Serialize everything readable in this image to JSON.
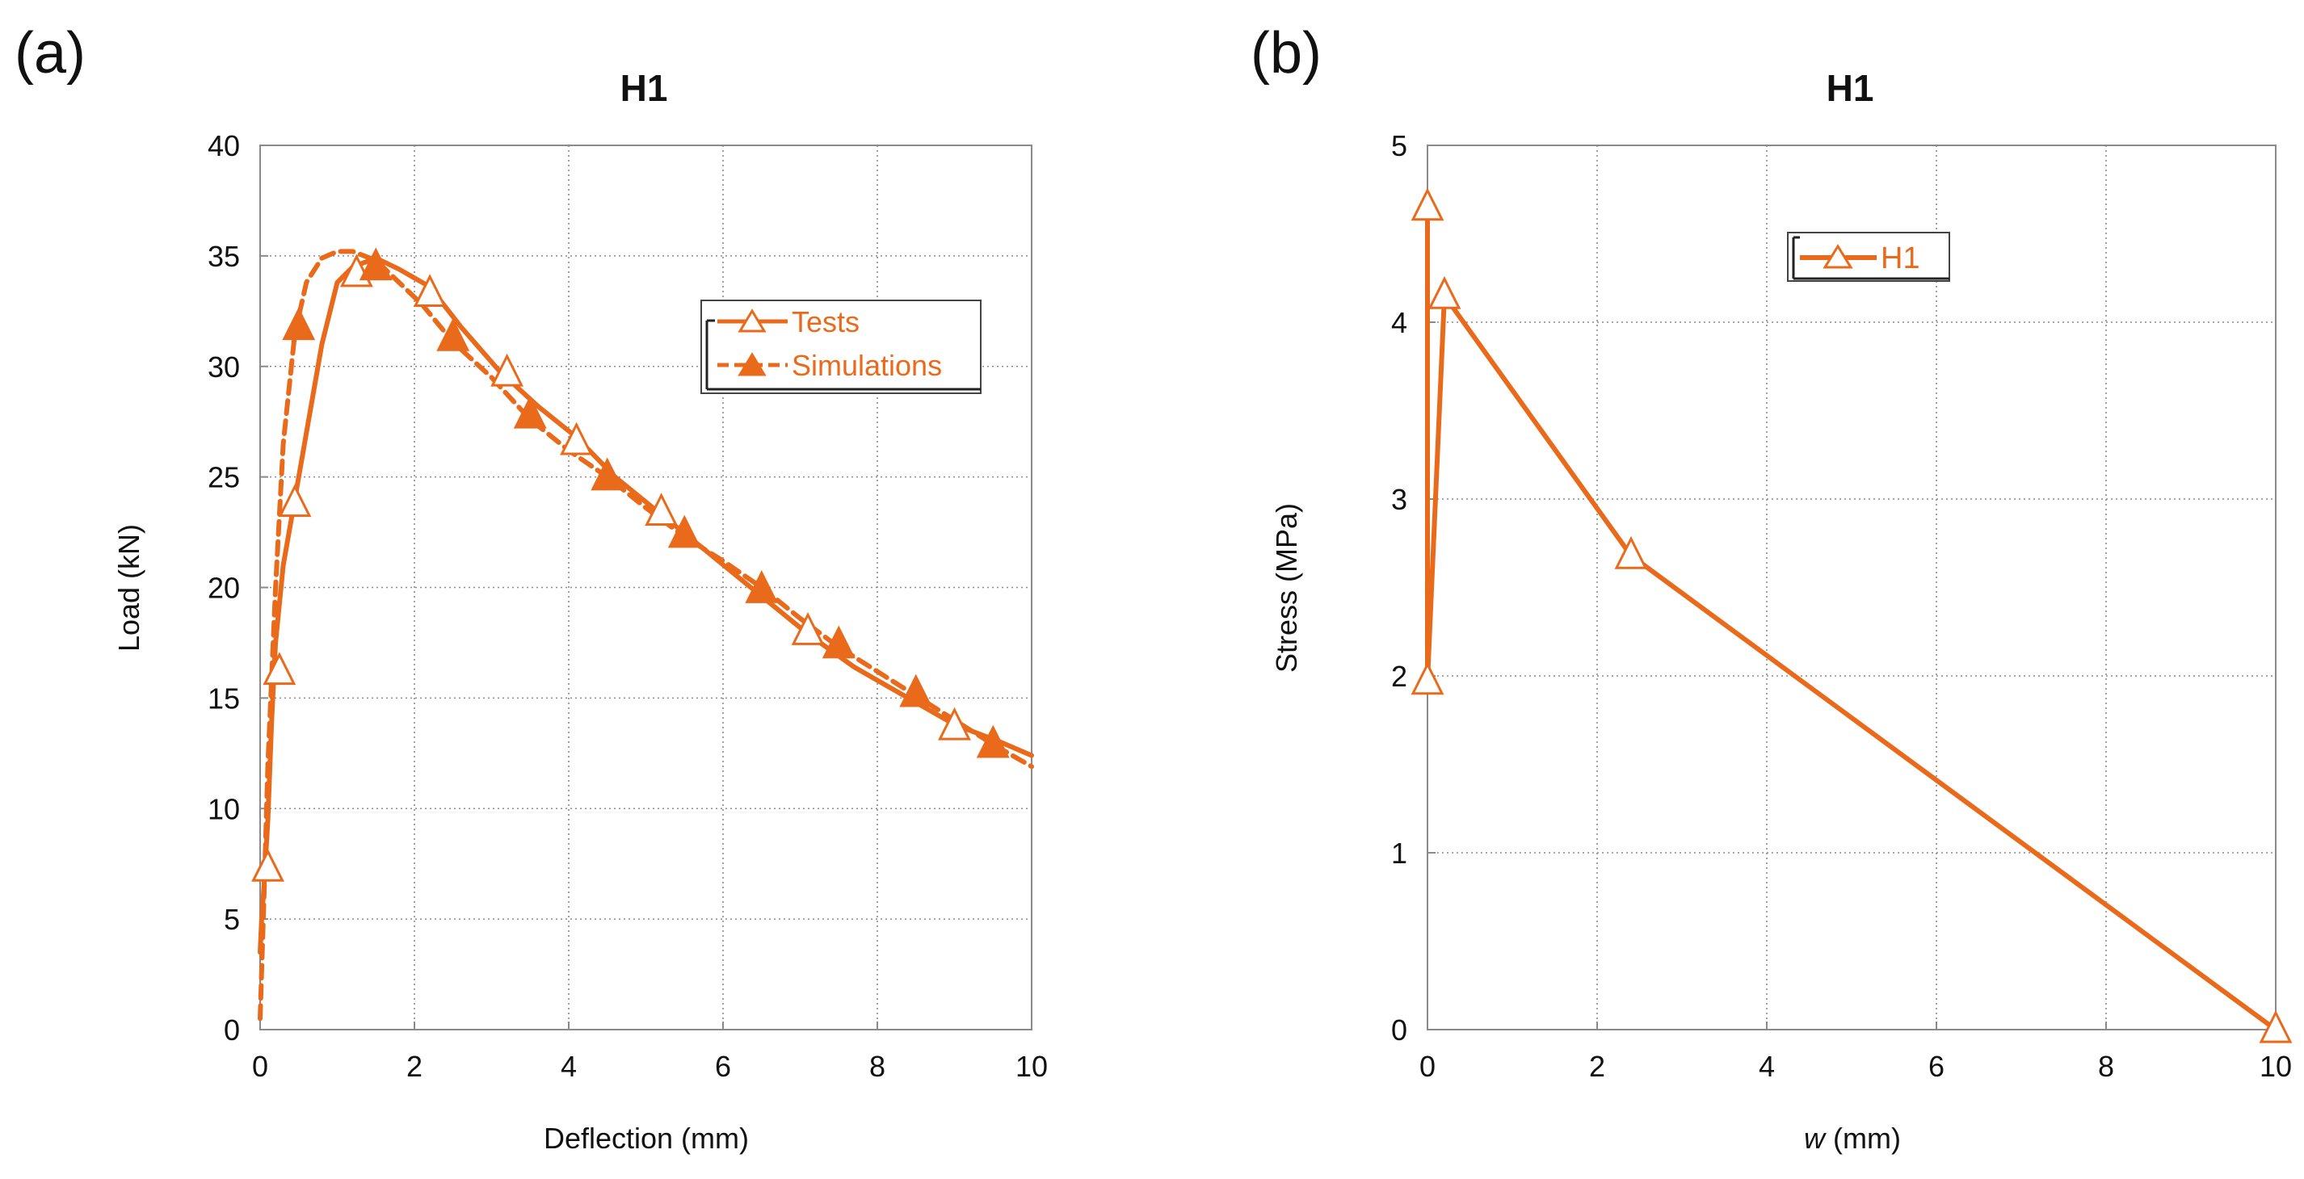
{
  "colors": {
    "series": "#ea6a1c",
    "grid": "#8c8c8c",
    "axis": "#808080",
    "text": "#111111",
    "marker_fill": "#ffffff"
  },
  "chart_data": [
    {
      "panel_label": "(a)",
      "type": "line",
      "title": "H1",
      "xlabel": "Deflection (mm)",
      "ylabel": "Load (kN)",
      "xlim": [
        0,
        10
      ],
      "ylim": [
        0,
        40
      ],
      "xticks": [
        0,
        2,
        4,
        6,
        8,
        10
      ],
      "yticks": [
        0,
        5,
        10,
        15,
        20,
        25,
        30,
        35,
        40
      ],
      "xtick_labels": [
        "0",
        "2",
        "4",
        "6",
        "8",
        "10"
      ],
      "ytick_labels": [
        "0",
        "5",
        "10",
        "15",
        "20",
        "25",
        "30",
        "35",
        "40"
      ],
      "grid": true,
      "legend_position": "upper-right",
      "series": [
        {
          "name": "Tests",
          "style": "solid",
          "marker": "open-triangle",
          "x": [
            0,
            0.02,
            0.05,
            0.1,
            0.15,
            0.2,
            0.3,
            0.45,
            0.6,
            0.8,
            1.0,
            1.2,
            1.5,
            1.8,
            2.2,
            2.6,
            3.1,
            3.6,
            4.1,
            4.6,
            5.2,
            5.8,
            6.5,
            7.1,
            7.7,
            8.4,
            9.0,
            9.6,
            10.0
          ],
          "y": [
            3.5,
            5,
            6.5,
            9.5,
            14,
            17.5,
            21,
            24,
            27,
            31,
            33.8,
            34.5,
            34.9,
            34.4,
            33.6,
            31.8,
            29.8,
            28.2,
            26.8,
            25,
            23.3,
            21.6,
            19.6,
            17.9,
            16.4,
            15,
            13.8,
            13,
            12.4
          ],
          "marker_x": [
            0.1,
            0.25,
            0.45,
            1.25,
            2.2,
            3.2,
            4.1,
            5.2,
            7.1,
            9.0
          ],
          "marker_y": [
            7.3,
            16.2,
            23.8,
            34.2,
            33.3,
            29.7,
            26.6,
            23.4,
            18,
            13.7
          ]
        },
        {
          "name": "Simulations",
          "style": "dashed",
          "marker": "filled-triangle",
          "x": [
            0,
            0.05,
            0.1,
            0.2,
            0.3,
            0.45,
            0.6,
            0.8,
            1.0,
            1.2,
            1.5,
            1.8,
            2.1,
            2.5,
            3.0,
            3.5,
            4.0,
            4.5,
            5.0,
            5.5,
            6.0,
            6.5,
            7.0,
            7.5,
            8.0,
            8.5,
            9.0,
            9.5,
            10.0
          ],
          "y": [
            0.5,
            6,
            12,
            20,
            26.5,
            31.5,
            33.8,
            34.9,
            35.2,
            35.2,
            34.8,
            33.8,
            32.8,
            31.1,
            29.5,
            27.6,
            26.2,
            25,
            23.6,
            22.3,
            21.2,
            20,
            18.6,
            17.3,
            16.2,
            15.1,
            14,
            12.9,
            11.9
          ],
          "marker_x": [
            0.5,
            1.5,
            2.5,
            3.5,
            4.5,
            5.5,
            6.5,
            7.5,
            8.5,
            9.5
          ],
          "marker_y": [
            31.8,
            34.5,
            31.3,
            27.8,
            25,
            22.4,
            19.9,
            17.4,
            15.2,
            12.9
          ]
        }
      ]
    },
    {
      "panel_label": "(b)",
      "type": "line",
      "title": "H1",
      "xlabel_italic": "w",
      "xlabel_rest": " (mm)",
      "ylabel": "Stress (MPa)",
      "xlim": [
        0,
        10
      ],
      "ylim": [
        0,
        5
      ],
      "xticks": [
        0,
        2,
        4,
        6,
        8,
        10
      ],
      "yticks": [
        0,
        1,
        2,
        3,
        4,
        5
      ],
      "xtick_labels": [
        "0",
        "2",
        "4",
        "6",
        "8",
        "10"
      ],
      "ytick_labels": [
        "0",
        "1",
        "2",
        "3",
        "4",
        "5"
      ],
      "grid": true,
      "legend_position": "upper-center",
      "series": [
        {
          "name": "H1",
          "style": "solid",
          "marker": "open-triangle",
          "x": [
            0,
            0,
            0.2,
            2.4,
            10
          ],
          "y": [
            4.65,
            1.97,
            4.15,
            2.68,
            0
          ],
          "marker_x": [
            0,
            0,
            0.2,
            2.4,
            10
          ],
          "marker_y": [
            4.65,
            1.97,
            4.15,
            2.68,
            0
          ]
        }
      ]
    }
  ]
}
